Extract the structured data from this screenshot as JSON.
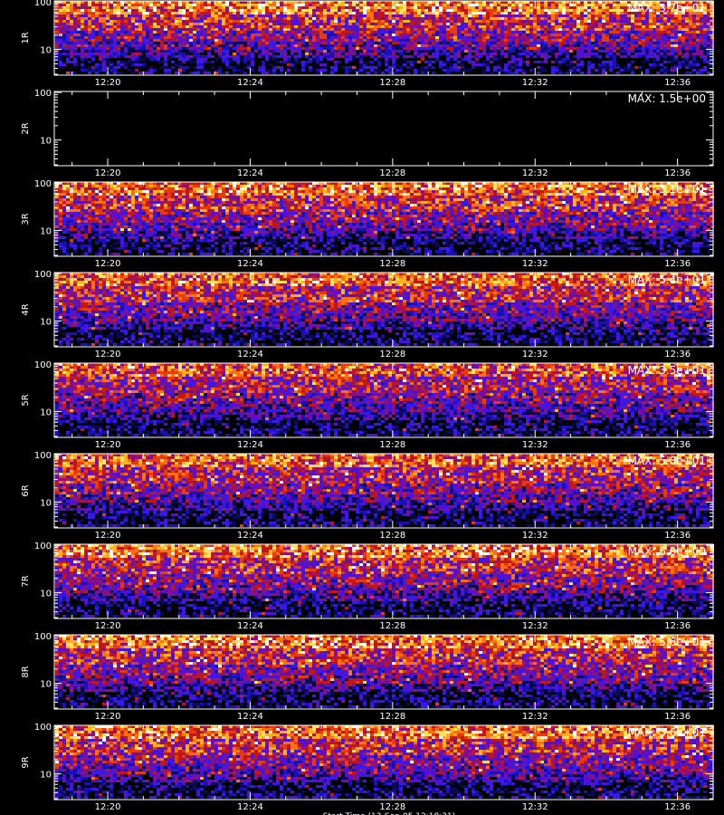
{
  "chart_data": [
    {
      "type": "heatmap",
      "row_label": "1R",
      "max_label": "MAX: 3.7e+01",
      "max_value": 37,
      "colormap": "black-blue-red-yellow-white",
      "density": 1.0
    },
    {
      "type": "heatmap",
      "row_label": "2R",
      "max_label": "MAX: 1.5e+00",
      "max_value": 1.5,
      "colormap": "black-blue-red-yellow-white",
      "density": 0.0
    },
    {
      "type": "heatmap",
      "row_label": "3R",
      "max_label": "MAX: 3.1e+01",
      "max_value": 31,
      "colormap": "black-blue-red-yellow-white",
      "density": 1.0
    },
    {
      "type": "heatmap",
      "row_label": "4R",
      "max_label": "MAX: 5.4e+01",
      "max_value": 54,
      "colormap": "black-blue-red-yellow-white",
      "density": 0.95
    },
    {
      "type": "heatmap",
      "row_label": "5R",
      "max_label": "MAX: 3.5e+01",
      "max_value": 35,
      "colormap": "black-blue-red-yellow-white",
      "density": 0.9
    },
    {
      "type": "heatmap",
      "row_label": "6R",
      "max_label": "MAX: 5.8e+01",
      "max_value": 58,
      "colormap": "black-blue-red-yellow-white",
      "density": 0.95
    },
    {
      "type": "heatmap",
      "row_label": "7R",
      "max_label": "MAX: 6.0e+00",
      "max_value": 6,
      "colormap": "black-blue-red-yellow-white",
      "density": 1.0
    },
    {
      "type": "heatmap",
      "row_label": "8R",
      "max_label": "MAX: 5.6e+01",
      "max_value": 56,
      "colormap": "black-blue-red-yellow-white",
      "density": 1.0
    },
    {
      "type": "heatmap",
      "row_label": "9R",
      "max_label": "MAX: 5.6e+01",
      "max_value": 56,
      "colormap": "black-blue-red-yellow-white",
      "density": 1.0
    }
  ],
  "x_axis": {
    "range": [
      "12:18:30",
      "12:37:00"
    ],
    "ticks": [
      "12:20",
      "12:24",
      "12:28",
      "12:32",
      "12:36"
    ]
  },
  "y_axis": {
    "scale": "log",
    "range": [
      3,
      110
    ],
    "tick_labels": [
      "100",
      "10"
    ]
  },
  "bottom_title": "Start Time (13-Sep-05 12:18:31)"
}
